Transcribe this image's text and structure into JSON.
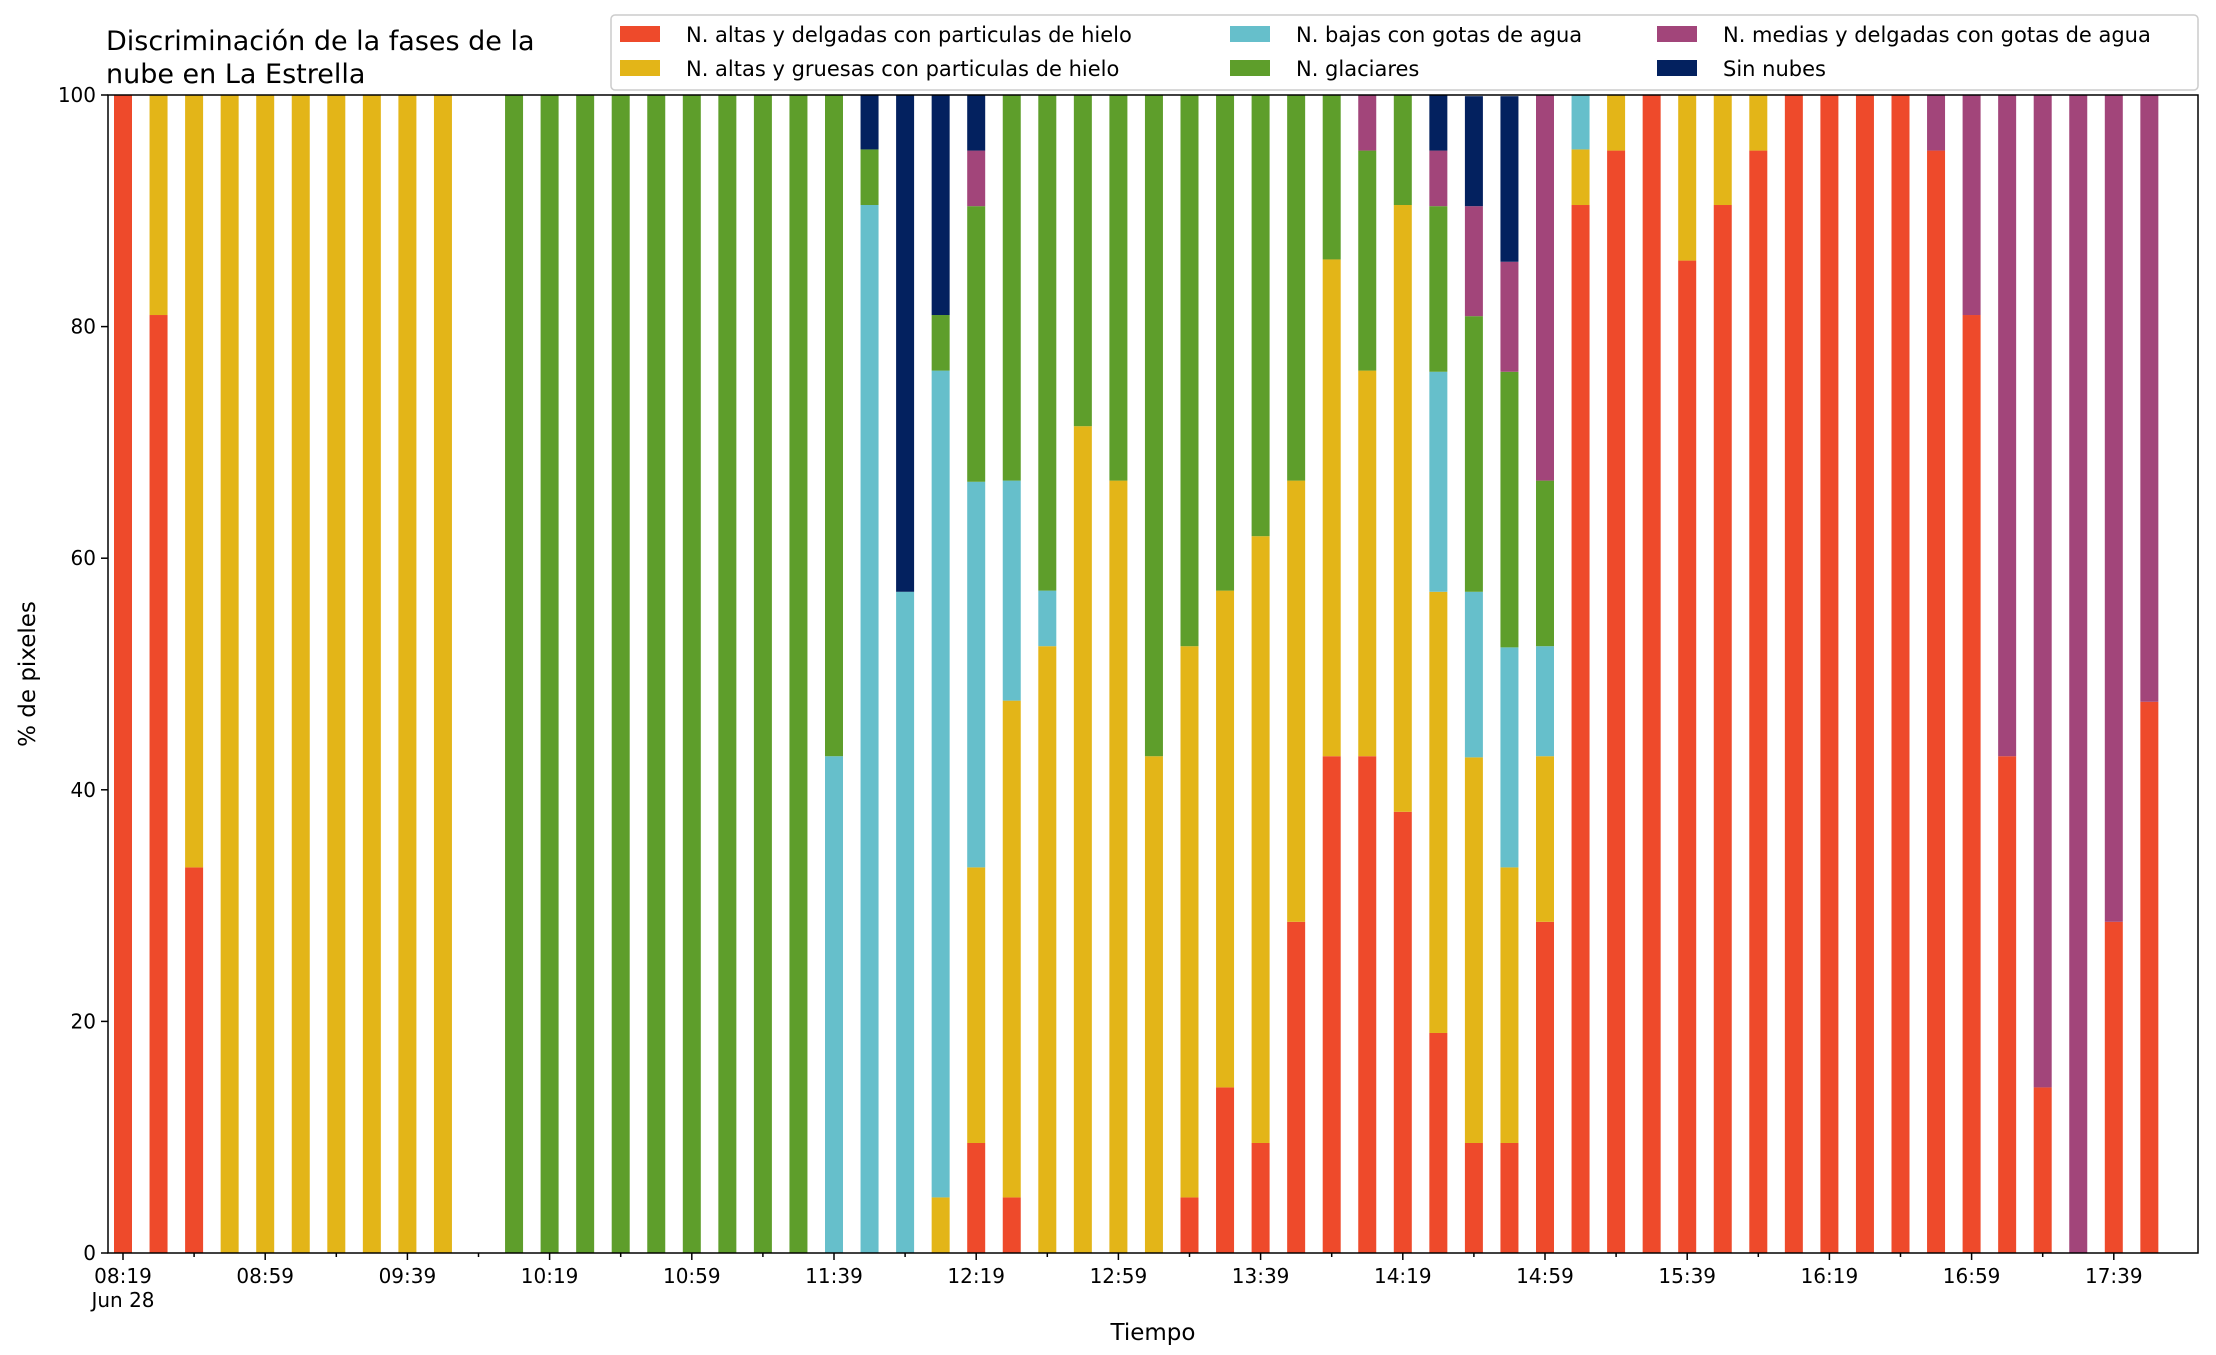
{
  "chart_data": {
    "type": "bar",
    "stacked": true,
    "title_lines": [
      "Discriminación de la fases de la",
      "nube en La Estrella"
    ],
    "xlabel": "Tiempo",
    "ylabel": "% de pixeles",
    "ylim": [
      0,
      100
    ],
    "yticks": [
      "0",
      "20",
      "40",
      "60",
      "80",
      "100"
    ],
    "xtick_labels": [
      "08:19",
      "08:59",
      "09:39",
      "10:19",
      "10:59",
      "11:39",
      "12:19",
      "12:59",
      "13:39",
      "14:19",
      "14:59",
      "15:39",
      "16:19",
      "16:59",
      "17:39"
    ],
    "xtick_sublabel": "Jun 28",
    "legend_position": "top-right",
    "categories": [
      "08:19",
      "08:29",
      "08:39",
      "08:49",
      "08:59",
      "09:09",
      "09:19",
      "09:29",
      "09:39",
      "09:49",
      "09:59",
      "10:09",
      "10:19",
      "10:29",
      "10:39",
      "10:49",
      "10:59",
      "11:09",
      "11:19",
      "11:29",
      "11:39",
      "11:49",
      "11:59",
      "12:09",
      "12:19",
      "12:29",
      "12:39",
      "12:49",
      "12:59",
      "13:09",
      "13:19",
      "13:29",
      "13:39",
      "13:49",
      "13:59",
      "14:09",
      "14:19",
      "14:29",
      "14:39",
      "14:49",
      "14:59",
      "15:09",
      "15:19",
      "15:29",
      "15:39",
      "15:49",
      "15:59",
      "16:09",
      "16:19",
      "16:29",
      "16:39",
      "16:49",
      "16:59",
      "17:09",
      "17:19",
      "17:29",
      "17:39",
      "17:49"
    ],
    "series": [
      {
        "name": "N. altas y delgadas con particulas de hielo",
        "color": "#ee4a2b",
        "values": [
          100,
          81,
          33.3,
          0,
          0,
          0,
          0,
          0,
          0,
          0,
          null,
          0,
          0,
          0,
          0,
          0,
          0,
          0,
          0,
          0,
          0,
          0,
          0,
          0,
          9.5,
          4.8,
          0,
          0,
          0,
          0,
          4.8,
          14.3,
          9.5,
          28.6,
          42.9,
          42.9,
          38.1,
          19,
          9.5,
          9.5,
          28.6,
          90.5,
          95.2,
          100,
          85.7,
          90.5,
          95.2,
          100,
          100,
          100,
          100,
          95.2,
          81,
          42.9,
          14.3,
          0,
          28.6,
          47.6
        ]
      },
      {
        "name": "N. altas y gruesas con particulas de hielo",
        "color": "#e3b518",
        "values": [
          0,
          19,
          66.7,
          100,
          100,
          100,
          100,
          100,
          100,
          100,
          null,
          0,
          0,
          0,
          0,
          0,
          0,
          0,
          0,
          0,
          0,
          0,
          0,
          4.8,
          23.8,
          42.9,
          52.4,
          71.4,
          66.7,
          42.9,
          47.6,
          42.9,
          52.4,
          38.1,
          42.9,
          33.3,
          52.4,
          38.1,
          33.3,
          23.8,
          14.3,
          4.8,
          4.8,
          0,
          14.3,
          9.5,
          4.8,
          0,
          0,
          0,
          0,
          0,
          0,
          0,
          0,
          0,
          0,
          0
        ]
      },
      {
        "name": "N. bajas con gotas de agua",
        "color": "#66bfcb",
        "values": [
          0,
          0,
          0,
          0,
          0,
          0,
          0,
          0,
          0,
          0,
          null,
          0,
          0,
          0,
          0,
          0,
          0,
          0,
          0,
          0,
          42.9,
          90.5,
          57.1,
          71.4,
          33.3,
          19,
          4.8,
          0,
          0,
          0,
          0,
          0,
          0,
          0,
          0,
          0,
          0,
          19,
          14.3,
          19,
          9.5,
          4.8,
          0,
          0,
          0,
          0,
          0,
          0,
          0,
          0,
          0,
          0,
          0,
          0,
          0,
          0,
          0,
          0
        ]
      },
      {
        "name": "N. glaciares",
        "color": "#5e9e2b",
        "values": [
          0,
          0,
          0,
          0,
          0,
          0,
          0,
          0,
          0,
          0,
          null,
          100,
          100,
          100,
          100,
          100,
          100,
          100,
          100,
          100,
          57.1,
          4.8,
          0,
          4.8,
          23.8,
          33.3,
          42.9,
          28.6,
          33.3,
          57.1,
          47.6,
          42.9,
          38.1,
          33.3,
          14.3,
          19,
          9.5,
          14.3,
          23.8,
          23.8,
          14.3,
          0,
          0,
          0,
          0,
          0,
          0,
          0,
          0,
          0,
          0,
          0,
          0,
          0,
          0,
          0,
          0,
          0
        ]
      },
      {
        "name": "N. medias y delgadas con gotas de agua",
        "color": "#a2457a",
        "values": [
          0,
          0,
          0,
          0,
          0,
          0,
          0,
          0,
          0,
          0,
          null,
          0,
          0,
          0,
          0,
          0,
          0,
          0,
          0,
          0,
          0,
          0,
          0,
          0,
          4.8,
          0,
          0,
          0,
          0,
          0,
          0,
          0,
          0,
          0,
          0,
          4.8,
          0,
          4.8,
          9.5,
          9.5,
          33.3,
          0,
          0,
          0,
          0,
          0,
          0,
          0,
          0,
          0,
          0,
          4.8,
          19,
          57.1,
          85.7,
          100,
          71.4,
          52.4
        ]
      },
      {
        "name": "Sin nubes",
        "color": "#03215f",
        "values": [
          0,
          0,
          0,
          0,
          0,
          0,
          0,
          0,
          0,
          0,
          null,
          0,
          0,
          0,
          0,
          0,
          0,
          0,
          0,
          0,
          0,
          4.8,
          42.9,
          19,
          4.8,
          0,
          0,
          0,
          0,
          0,
          0,
          0,
          0,
          0,
          0,
          0,
          0,
          4.8,
          9.5,
          14.3,
          0,
          0,
          0,
          0,
          0,
          0,
          0,
          0,
          0,
          0,
          0,
          0,
          0,
          0,
          0,
          0,
          0,
          0
        ]
      }
    ],
    "legend_order": [
      0,
      1,
      2,
      3,
      4,
      5
    ]
  }
}
